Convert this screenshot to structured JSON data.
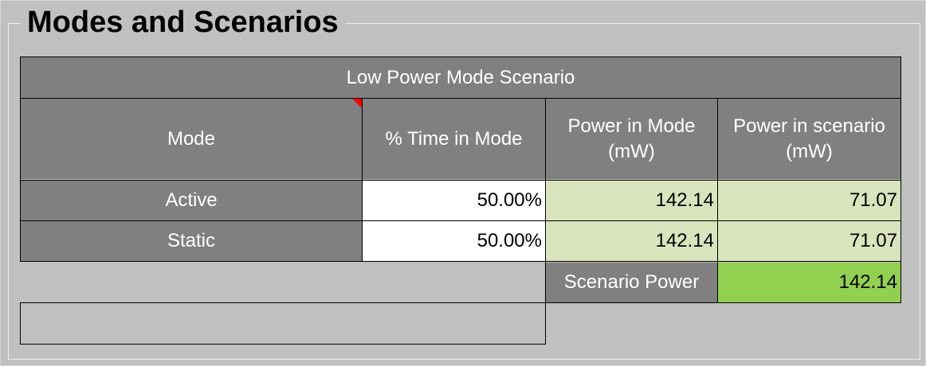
{
  "section": {
    "title": "Modes and Scenarios"
  },
  "table": {
    "title": "Low Power Mode Scenario",
    "headers": {
      "mode": "Mode",
      "time": "% Time in Mode",
      "power_mode_line1": "Power in Mode",
      "power_mode_line2": "(mW)",
      "power_scenario_line1": "Power in scenario",
      "power_scenario_line2": "(mW)"
    },
    "rows": [
      {
        "mode": "Active",
        "time": "50.00%",
        "power_mode": "142.14",
        "power_scenario": "71.07"
      },
      {
        "mode": "Static",
        "time": "50.00%",
        "power_mode": "142.14",
        "power_scenario": "71.07"
      }
    ],
    "total": {
      "label": "Scenario Power",
      "value": "142.14"
    }
  },
  "colors": {
    "header_gray": "#808080",
    "background_gray": "#c0c0c0",
    "light_green": "#d8e4bc",
    "bright_green": "#92d050",
    "comment_red": "#ff0000"
  }
}
